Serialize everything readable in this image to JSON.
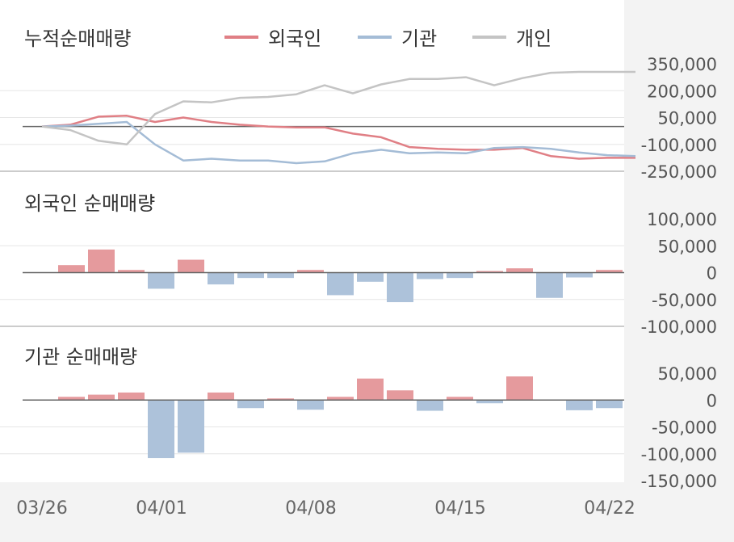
{
  "colors": {
    "foreign": "#e07f85",
    "institution": "#a4bcd6",
    "individual": "#c4c4c4",
    "positive_bar": "#e59a9d",
    "negative_bar": "#adc2da",
    "zero_line": "#666666",
    "grid": "#e6e6e6"
  },
  "chart_data": [
    {
      "id": "cumulative",
      "type": "line",
      "title": "누적순매매량",
      "legend_position": "top",
      "ylim": [
        -250000,
        350000
      ],
      "yticks": [
        350000,
        200000,
        50000,
        -100000,
        -250000
      ],
      "ytick_labels": [
        "350,000",
        "200,000",
        "50,000",
        "-100,000",
        "-250,000"
      ],
      "x": [
        "03/26",
        "03/27",
        "03/28",
        "03/29",
        "03/30",
        "04/01",
        "04/02",
        "04/03",
        "04/04",
        "04/05",
        "04/06",
        "04/08",
        "04/09",
        "04/10",
        "04/11",
        "04/12",
        "04/13",
        "04/15",
        "04/16",
        "04/17",
        "04/18",
        "04/19"
      ],
      "series": [
        {
          "name": "외국인",
          "key": "foreign",
          "values": [
            0,
            10000,
            55000,
            60000,
            25000,
            50000,
            25000,
            10000,
            0,
            -5000,
            -5000,
            -40000,
            -60000,
            -115000,
            -125000,
            -130000,
            -130000,
            -120000,
            -165000,
            -180000,
            -175000,
            -175000
          ]
        },
        {
          "name": "기관",
          "key": "institution",
          "values": [
            0,
            5000,
            15000,
            25000,
            -100000,
            -190000,
            -180000,
            -190000,
            -190000,
            -205000,
            -195000,
            -150000,
            -130000,
            -150000,
            -145000,
            -150000,
            -120000,
            -115000,
            -125000,
            -145000,
            -160000,
            -165000
          ]
        },
        {
          "name": "개인",
          "key": "individual",
          "values": [
            0,
            -20000,
            -80000,
            -100000,
            70000,
            140000,
            135000,
            160000,
            165000,
            180000,
            230000,
            185000,
            235000,
            265000,
            265000,
            275000,
            230000,
            270000,
            300000,
            305000,
            305000,
            305000
          ]
        }
      ]
    },
    {
      "id": "foreign_daily",
      "type": "bar",
      "title": "외국인 순매매량",
      "ylim": [
        -100000,
        100000
      ],
      "yticks": [
        100000,
        50000,
        0,
        -50000,
        -100000
      ],
      "ytick_labels": [
        "100,000",
        "50,000",
        "0",
        "-50,000",
        "-100,000"
      ],
      "values": [
        0,
        14000,
        43000,
        5000,
        -30000,
        24000,
        -22000,
        -10000,
        -10000,
        5000,
        -42000,
        -17000,
        -55000,
        -12000,
        -10000,
        3000,
        8000,
        -47000,
        -9000,
        5000
      ]
    },
    {
      "id": "institution_daily",
      "type": "bar",
      "title": "기관 순매매량",
      "ylim": [
        -150000,
        50000
      ],
      "yticks": [
        50000,
        0,
        -50000,
        -100000,
        -150000
      ],
      "ytick_labels": [
        "50,000",
        "0",
        "-50,000",
        "-100,000",
        "-150,000"
      ],
      "values": [
        0,
        6000,
        10000,
        14000,
        -108000,
        -98000,
        14000,
        -15000,
        3000,
        -18000,
        6000,
        40000,
        18000,
        -20000,
        6000,
        -6000,
        44000,
        0,
        -19000,
        -15000
      ]
    }
  ],
  "x_axis": {
    "labels": [
      "03/26",
      "04/01",
      "04/08",
      "04/15",
      "04/22"
    ]
  }
}
